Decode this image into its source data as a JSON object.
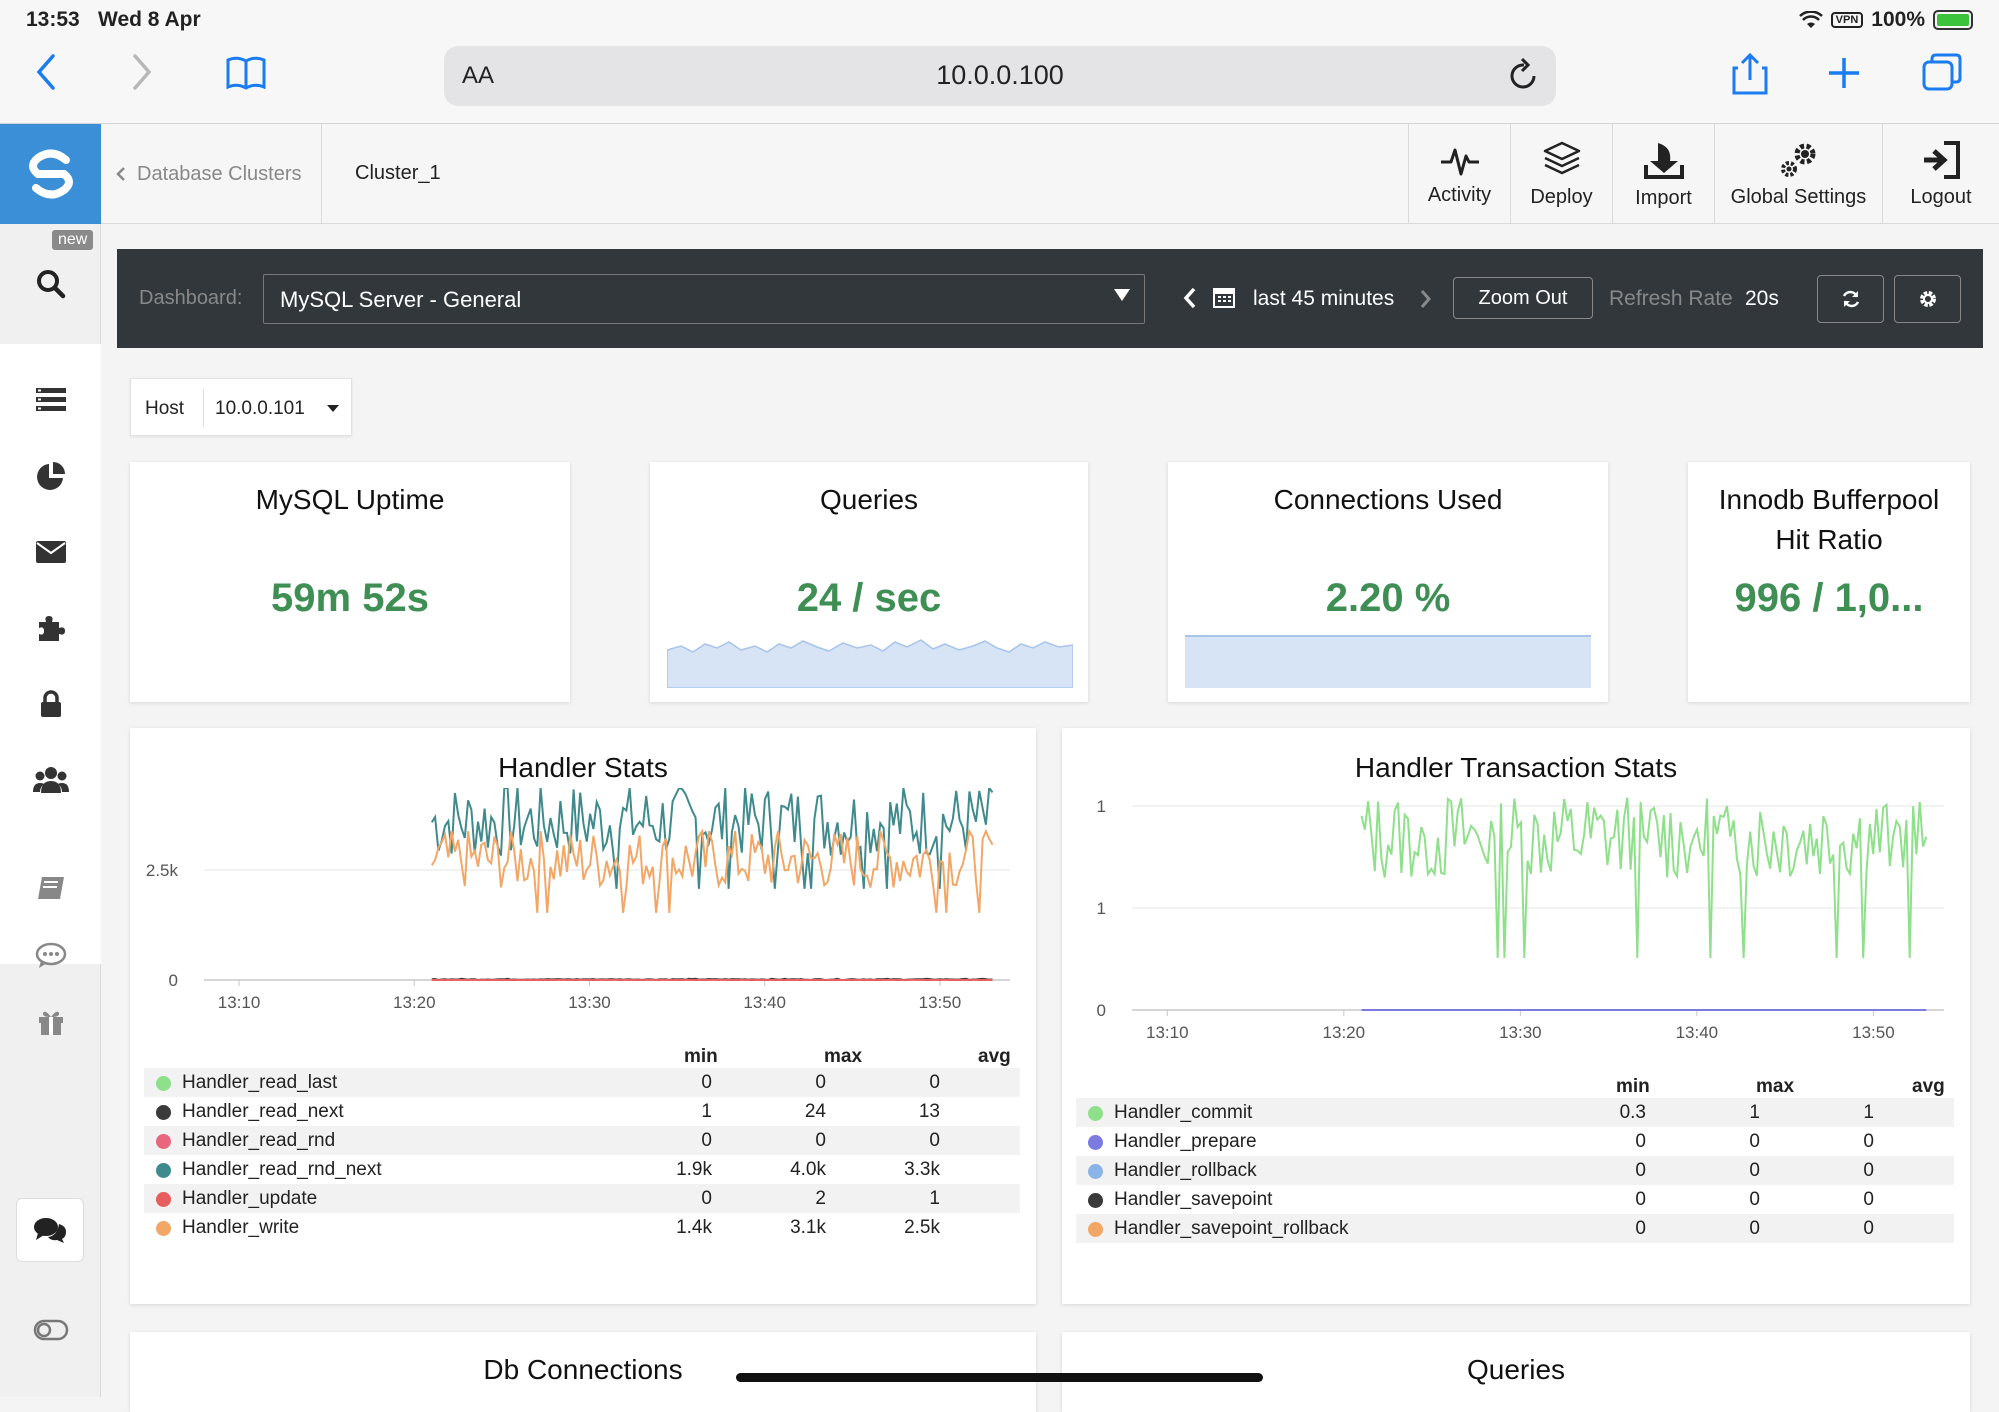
{
  "status_bar": {
    "time": "13:53",
    "date": "Wed 8 Apr",
    "vpn": "VPN",
    "battery": "100%"
  },
  "browser": {
    "text_size_label": "AA",
    "url": "10.0.0.100"
  },
  "sidebar": {
    "new_badge": "new"
  },
  "appbar": {
    "breadcrumb": "Database Clusters",
    "cluster": "Cluster_1",
    "actions": {
      "activity": "Activity",
      "deploy": "Deploy",
      "import": "Import",
      "global_settings": "Global Settings",
      "logout": "Logout"
    }
  },
  "toolbar": {
    "dashboard_label": "Dashboard:",
    "dashboard_value": "MySQL Server - General",
    "range": "last 45 minutes",
    "zoom_out": "Zoom Out",
    "refresh_label": "Refresh Rate",
    "refresh_value": "20s"
  },
  "host_filter": {
    "label": "Host",
    "value": "10.0.0.101"
  },
  "stats": {
    "uptime": {
      "title": "MySQL Uptime",
      "value": "59m 52s"
    },
    "queries": {
      "title": "Queries",
      "value": "24 / sec"
    },
    "connections": {
      "title": "Connections Used",
      "value": "2.20 %"
    },
    "bufferpool": {
      "title_line1": "Innodb Bufferpool",
      "title_line2": "Hit Ratio",
      "value": "996 / 1,0..."
    }
  },
  "colors": {
    "accent_green": "#3f8f55",
    "handler_read_last": "#8fe08a",
    "handler_read_next": "#3a3a3a",
    "handler_read_rnd": "#e8677d",
    "handler_read_rnd_next": "#3f8a8c",
    "handler_update": "#e85d5d",
    "handler_write": "#f2a766",
    "handler_commit": "#8fe08a",
    "handler_prepare": "#7b7be0",
    "handler_rollback": "#8ab4e8",
    "handler_savepoint": "#3a3a3a",
    "handler_savepoint_rollback": "#f2a766"
  },
  "handler_stats": {
    "title": "Handler Stats",
    "columns": [
      "min",
      "max",
      "avg"
    ],
    "rows": [
      {
        "name": "Handler_read_last",
        "min": "0",
        "max": "0",
        "avg": "0"
      },
      {
        "name": "Handler_read_next",
        "min": "1",
        "max": "24",
        "avg": "13"
      },
      {
        "name": "Handler_read_rnd",
        "min": "0",
        "max": "0",
        "avg": "0"
      },
      {
        "name": "Handler_read_rnd_next",
        "min": "1.9k",
        "max": "4.0k",
        "avg": "3.3k"
      },
      {
        "name": "Handler_update",
        "min": "0",
        "max": "2",
        "avg": "1"
      },
      {
        "name": "Handler_write",
        "min": "1.4k",
        "max": "3.1k",
        "avg": "2.5k"
      }
    ]
  },
  "handler_tx_stats": {
    "title": "Handler Transaction Stats",
    "columns": [
      "min",
      "max",
      "avg"
    ],
    "rows": [
      {
        "name": "Handler_commit",
        "min": "0.3",
        "max": "1",
        "avg": "1"
      },
      {
        "name": "Handler_prepare",
        "min": "0",
        "max": "0",
        "avg": "0"
      },
      {
        "name": "Handler_rollback",
        "min": "0",
        "max": "0",
        "avg": "0"
      },
      {
        "name": "Handler_savepoint",
        "min": "0",
        "max": "0",
        "avg": "0"
      },
      {
        "name": "Handler_savepoint_rollback",
        "min": "0",
        "max": "0",
        "avg": "0"
      }
    ]
  },
  "bottom_panels": {
    "db_connections": "Db Connections",
    "queries": "Queries"
  },
  "chart_data": [
    {
      "type": "line",
      "title": "Handler Stats",
      "x_ticks": [
        "13:10",
        "13:20",
        "13:30",
        "13:40",
        "13:50"
      ],
      "y_ticks": [
        "0",
        "2.5k"
      ],
      "x_range": [
        "13:08",
        "13:54"
      ],
      "ylim": [
        0,
        4000
      ],
      "series": [
        {
          "name": "Handler_read_rnd_next",
          "start": "13:21",
          "min": 1900,
          "max": 4000,
          "avg": 3300
        },
        {
          "name": "Handler_write",
          "start": "13:21",
          "min": 1400,
          "max": 3100,
          "avg": 2500
        },
        {
          "name": "Handler_read_next",
          "start": "13:21",
          "min": 1,
          "max": 24,
          "avg": 13
        },
        {
          "name": "Handler_update",
          "start": "13:21",
          "min": 0,
          "max": 2,
          "avg": 1
        }
      ]
    },
    {
      "type": "line",
      "title": "Handler Transaction Stats",
      "x_ticks": [
        "13:10",
        "13:20",
        "13:30",
        "13:40",
        "13:50"
      ],
      "y_ticks": [
        "0",
        "1",
        "1"
      ],
      "x_range": [
        "13:08",
        "13:54"
      ],
      "ylim": [
        0,
        1.2
      ],
      "series": [
        {
          "name": "Handler_commit",
          "start": "13:21",
          "min": 0.3,
          "max": 1,
          "avg": 1
        },
        {
          "name": "Handler_prepare",
          "start": "13:21",
          "min": 0,
          "max": 0,
          "avg": 0
        }
      ]
    }
  ]
}
